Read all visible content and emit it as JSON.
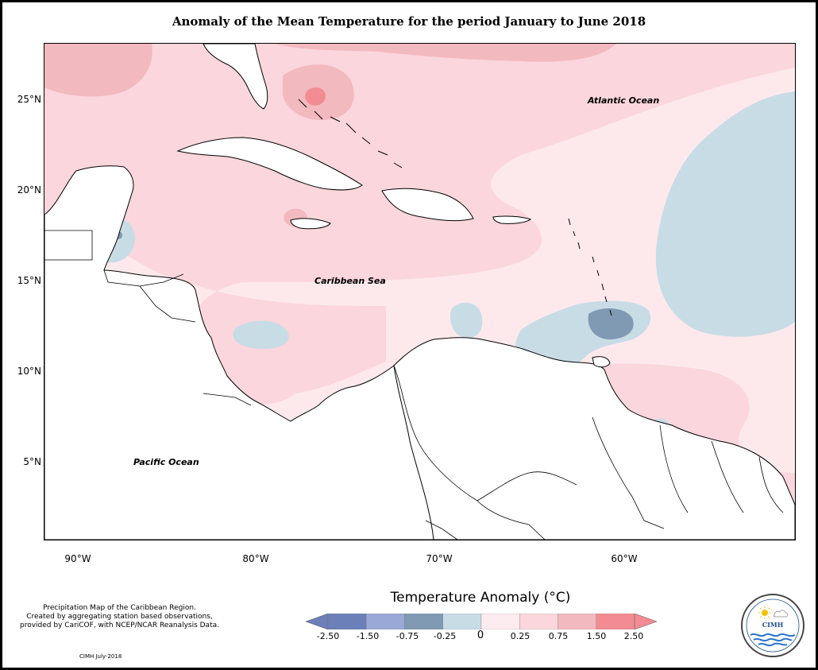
{
  "title": "Anomaly of the Mean Temperature for the period January to June 2018",
  "map": {
    "latitude_labels": [
      "25°N",
      "20°N",
      "15°N",
      "10°N",
      "5°N"
    ],
    "longitude_labels": [
      "90°W",
      "80°W",
      "70°W",
      "60°W"
    ],
    "ocean_labels": {
      "atlantic": "Atlantic Ocean",
      "caribbean": "Caribbean Sea",
      "pacific": "Pacific Ocean"
    }
  },
  "legend": {
    "title": "Temperature Anomaly (°C)",
    "ticks": [
      "-2.50",
      "-1.50",
      "-0.75",
      "-0.25",
      "0",
      "0.25",
      "0.75",
      "1.50",
      "2.50"
    ],
    "colors": [
      "#6b80b8",
      "#9aa8d8",
      "#7f9ab2",
      "#c8dce6",
      "#fdecef",
      "#fbd6dc",
      "#f2b9bf",
      "#f28b92"
    ]
  },
  "credits": {
    "lines": [
      "Precipitation Map of the Caribbean Region.",
      "Created by aggregating station based observations,",
      "provided by CariCOF, with NCEP/NCAR Reanalysis Data."
    ],
    "date": "CIMH July-2018"
  },
  "logo": {
    "name": "CIMH"
  }
}
